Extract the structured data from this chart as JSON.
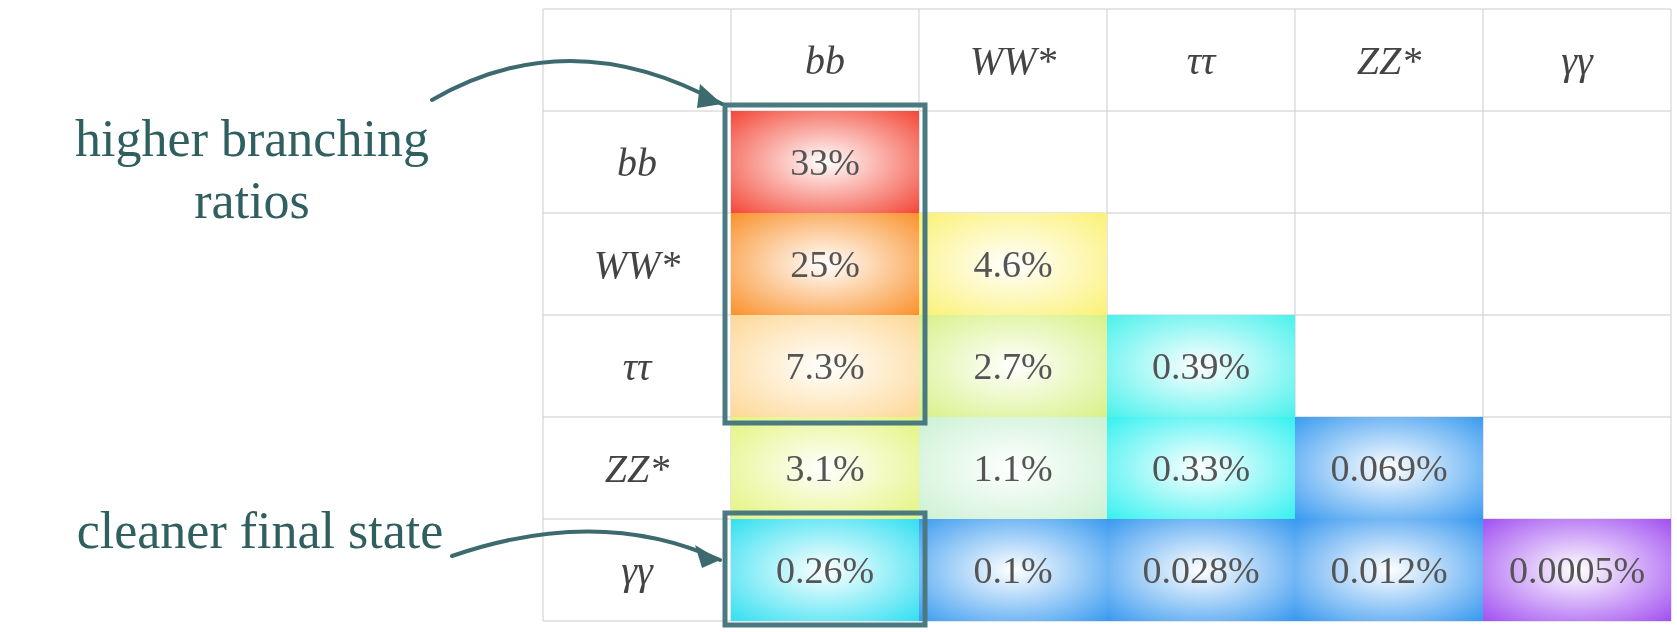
{
  "chart_data": {
    "type": "heatmap",
    "categories": [
      "bb",
      "WW*",
      "ττ",
      "ZZ*",
      "γγ"
    ],
    "y_categories": [
      "bb",
      "WW*",
      "ττ",
      "ZZ*",
      "γγ"
    ],
    "cells": [
      [
        33,
        null,
        null,
        null,
        null
      ],
      [
        25,
        4.6,
        null,
        null,
        null
      ],
      [
        7.3,
        2.7,
        0.39,
        null,
        null
      ],
      [
        3.1,
        1.1,
        0.33,
        0.069,
        null
      ],
      [
        0.26,
        0.1,
        0.028,
        0.012,
        0.0005
      ]
    ],
    "cell_labels": [
      [
        "33%",
        null,
        null,
        null,
        null
      ],
      [
        "25%",
        "4.6%",
        null,
        null,
        null
      ],
      [
        "7.3%",
        "2.7%",
        "0.39%",
        null,
        null
      ],
      [
        "3.1%",
        "1.1%",
        "0.33%",
        "0.069%",
        null
      ],
      [
        "0.26%",
        "0.1%",
        "0.028%",
        "0.012%",
        "0.0005%"
      ]
    ],
    "grid": true,
    "annotations": [
      "higher branching ratios",
      "cleaner final state"
    ]
  }
}
